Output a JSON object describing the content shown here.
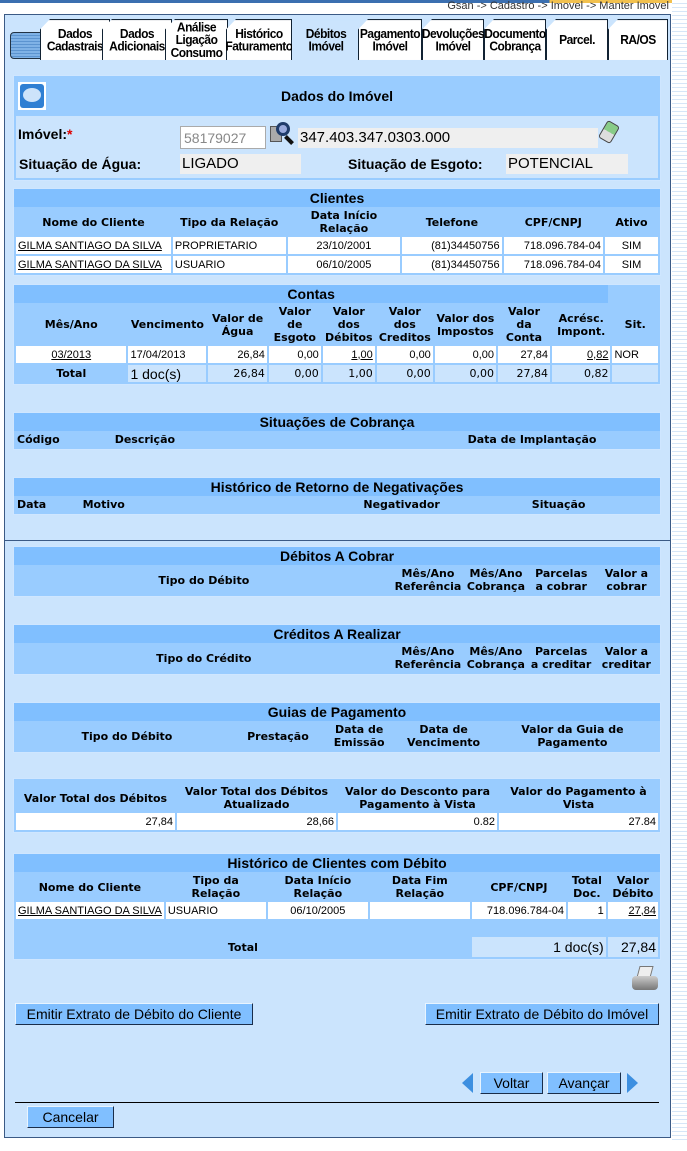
{
  "breadcrumb": "Gsan -> Cadastro -> Imovel -> Manter Imovel",
  "tabs": [
    {
      "label": "Dados Cadastrais",
      "active": false
    },
    {
      "label": "Dados Adicionais",
      "active": false
    },
    {
      "label": "Análise Ligação Consumo",
      "active": false
    },
    {
      "label": "Histórico Faturamento",
      "active": false
    },
    {
      "label": "Débitos Imóvel",
      "active": true
    },
    {
      "label": "Pagamento Imóvel",
      "active": false
    },
    {
      "label": "Devoluções Imóvel",
      "active": false
    },
    {
      "label": "Documento Cobrança",
      "active": false
    },
    {
      "label": "Parcel.",
      "active": false
    },
    {
      "label": "RA/OS",
      "active": false
    }
  ],
  "imovel": {
    "title": "Dados do Imóvel",
    "imovel_label": "Imóvel:",
    "required_mark": "*",
    "matricula": "58179027",
    "inscricao": "347.403.347.0303.000",
    "agua_label": "Situação de Água:",
    "agua_value": "LIGADO",
    "esgoto_label": "Situação de Esgoto:",
    "esgoto_value": "POTENCIAL"
  },
  "clientes": {
    "title": "Clientes",
    "columns": [
      "Nome do Cliente",
      "Tipo da Relação",
      "Data Início Relação",
      "Telefone",
      "CPF/CNPJ",
      "Ativo"
    ],
    "rows": [
      [
        "GILMA SANTIAGO DA SILVA",
        "PROPRIETARIO",
        "23/10/2001",
        "(81)34450756",
        "718.096.784-04",
        "SIM"
      ],
      [
        "GILMA SANTIAGO DA SILVA",
        "USUARIO",
        "06/10/2005",
        "(81)34450756",
        "718.096.784-04",
        "SIM"
      ]
    ]
  },
  "contas": {
    "title": "Contas",
    "columns": [
      "Mês/Ano",
      "Vencimento",
      "Valor de Água",
      "Valor de Esgoto",
      "Valor dos Débitos",
      "Valor dos Creditos",
      "Valor dos Impostos",
      "Valor da Conta",
      "Acrésc. Impont.",
      "Sit."
    ],
    "rows": [
      [
        "03/2013",
        "17/04/2013",
        "26,84",
        "0,00",
        "1,00",
        "0,00",
        "0,00",
        "27,84",
        "0,82",
        "NOR"
      ]
    ],
    "total": [
      "Total",
      "1  doc(s)",
      "26,84",
      "0,00",
      "1,00",
      "0,00",
      "0,00",
      "27,84",
      "0,82",
      ""
    ]
  },
  "situacoes": {
    "title": "Situações de Cobrança",
    "columns": [
      "Código",
      "Descrição",
      "Data de Implantação"
    ]
  },
  "negativacoes": {
    "title": "Histórico de Retorno de Negativações",
    "columns": [
      "Data",
      "Motivo",
      "Negativador",
      "Situação"
    ]
  },
  "debitos": {
    "title": "Débitos A Cobrar",
    "columns": [
      "Tipo do Débito",
      "Mês/Ano Referência",
      "Mês/Ano Cobrança",
      "Parcelas a cobrar",
      "Valor a cobrar"
    ]
  },
  "creditos": {
    "title": "Créditos A Realizar",
    "columns": [
      "Tipo do Crédito",
      "Mês/Ano Referência",
      "Mês/Ano Cobrança",
      "Parcelas a creditar",
      "Valor a creditar"
    ]
  },
  "guias": {
    "title": "Guias de Pagamento",
    "columns": [
      "Tipo do Débito",
      "Prestação",
      "Data de Emissão",
      "Data de Vencimento",
      "Valor da Guia de Pagamento"
    ]
  },
  "totais": {
    "columns": [
      "Valor Total dos Débitos",
      "Valor Total dos Débitos Atualizado",
      "Valor do Desconto para Pagamento à Vista",
      "Valor do Pagamento à Vista"
    ],
    "rows": [
      [
        "27,84",
        "28,66",
        "0.82",
        "27.84"
      ]
    ]
  },
  "historico": {
    "title": "Histórico de Clientes com Débito",
    "columns": [
      "Nome do Cliente",
      "Tipo da Relação",
      "Data Início Relação",
      "Data Fim Relação",
      "CPF/CNPJ",
      "Total Doc.",
      "Valor Débito"
    ],
    "rows": [
      [
        "GILMA SANTIAGO DA SILVA",
        "USUARIO",
        "06/10/2005",
        "",
        "718.096.784-04",
        "1",
        "27,84"
      ]
    ],
    "total_label": "Total",
    "total_docs": "1  doc(s)",
    "total_valor": "27,84"
  },
  "buttons": {
    "extrato_cliente": "Emitir Extrato de Débito do Cliente",
    "extrato_imovel": "Emitir Extrato de Débito do Imóvel",
    "voltar": "Voltar",
    "avancar": "Avançar",
    "cancelar": "Cancelar"
  }
}
